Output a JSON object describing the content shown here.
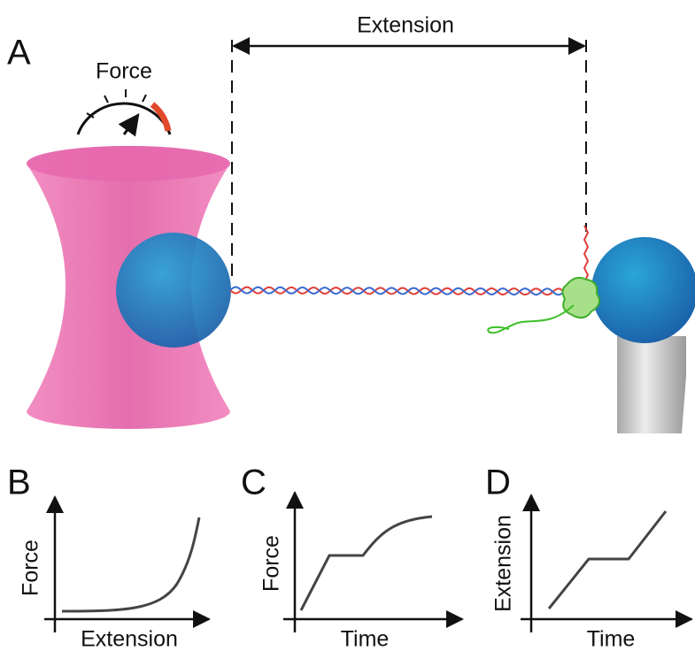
{
  "panels": {
    "A": {
      "label": "A",
      "force_label": "Force",
      "extension_label": "Extension"
    },
    "B": {
      "label": "B",
      "y_axis": "Force",
      "x_axis": "Extension"
    },
    "C": {
      "label": "C",
      "y_axis": "Force",
      "x_axis": "Time"
    },
    "D": {
      "label": "D",
      "y_axis": "Extension",
      "x_axis": "Time"
    }
  }
}
